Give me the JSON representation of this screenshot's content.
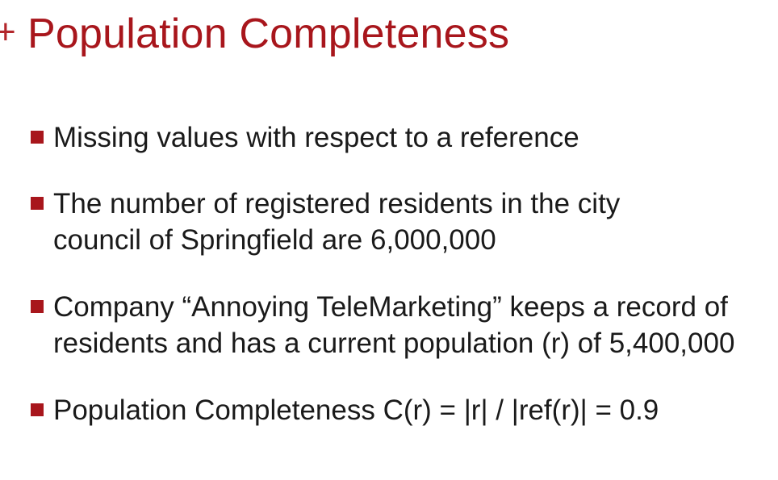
{
  "slide": {
    "title_prefix": "+",
    "title": "Population Completeness",
    "accent_color": "#a8161c",
    "bullets": [
      {
        "text": "Missing values with respect to a reference"
      },
      {
        "text": "The number of registered residents in the city council of Springfield are 6,000,000"
      },
      {
        "text": "Company “Annoying TeleMarketing” keeps a record of residents and has a current population (r) of 5,400,000"
      },
      {
        "text": "Population Completeness C(r) = |r| / |ref(r)| = 0.9"
      }
    ]
  }
}
